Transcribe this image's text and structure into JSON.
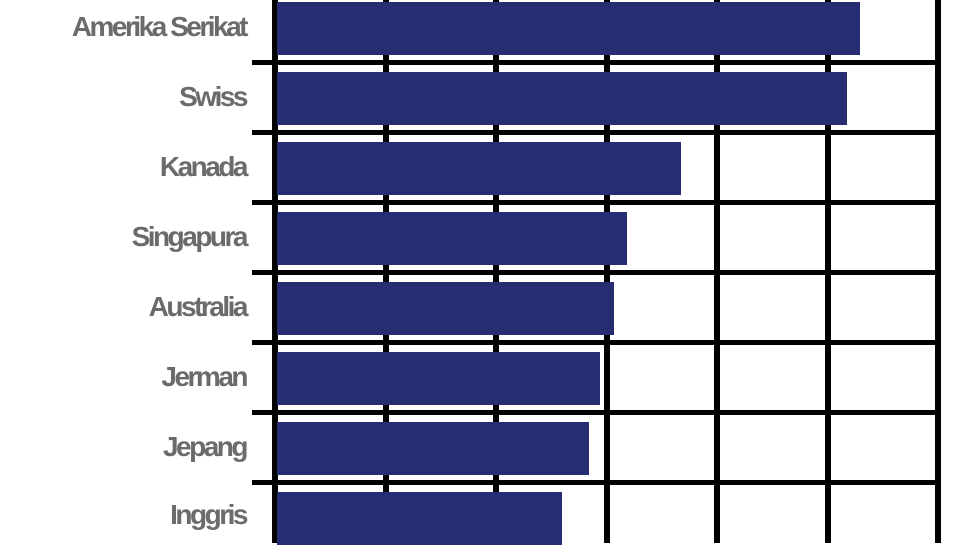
{
  "chart_data": {
    "type": "bar",
    "orientation": "horizontal",
    "title": "",
    "xlabel": "",
    "ylabel": "",
    "categories": [
      "Amerika Serikat",
      "Swiss",
      "Kanada",
      "Singapura",
      "Australia",
      "Jerman",
      "Jepang",
      "Inggris"
    ],
    "values": [
      5.29,
      5.18,
      3.67,
      3.19,
      3.07,
      2.94,
      2.84,
      2.6
    ],
    "value_units": "gridline intervals (no axis tick labels visible)",
    "xlim": [
      0,
      6
    ],
    "grid": true,
    "legend": null,
    "bar_color": "#262d72",
    "label_color": "#6b6b6b"
  },
  "labels": [
    "Amerika Serikat",
    "Swiss",
    "Kanada",
    "Singapura",
    "Australia",
    "Jerman",
    "Jepang",
    "Inggris"
  ]
}
